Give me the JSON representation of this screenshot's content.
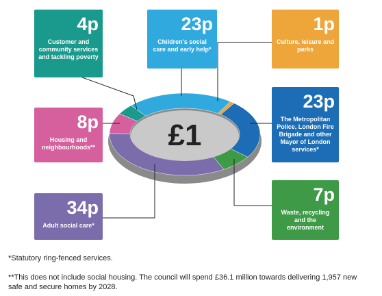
{
  "chart_data": {
    "type": "donut",
    "center_label": "£1",
    "categories": [
      "Customer and community services and tackling poverty",
      "Children's social care and early help*",
      "Culture, leisure and parks",
      "The Metropolitan Police, London Fire Brigade and other Mayor of London services*",
      "Waste, recycling and the environment",
      "Adult social care*",
      "Housing and neighbourhoods**"
    ],
    "values": [
      4,
      23,
      1,
      23,
      7,
      34,
      8
    ],
    "value_labels": [
      "4p",
      "23p",
      "1p",
      "23p",
      "7p",
      "34p",
      "8p"
    ],
    "colors": [
      "#1a9a8c",
      "#30a9df",
      "#eea53a",
      "#1c6db5",
      "#3f9a48",
      "#7b6cab",
      "#d5609d"
    ]
  },
  "notes": [
    "*Statutory ring-fenced services.",
    "**This does not include social housing. The council will spend £36.1 million towards delivering 1,957 new safe and secure homes by 2028."
  ]
}
